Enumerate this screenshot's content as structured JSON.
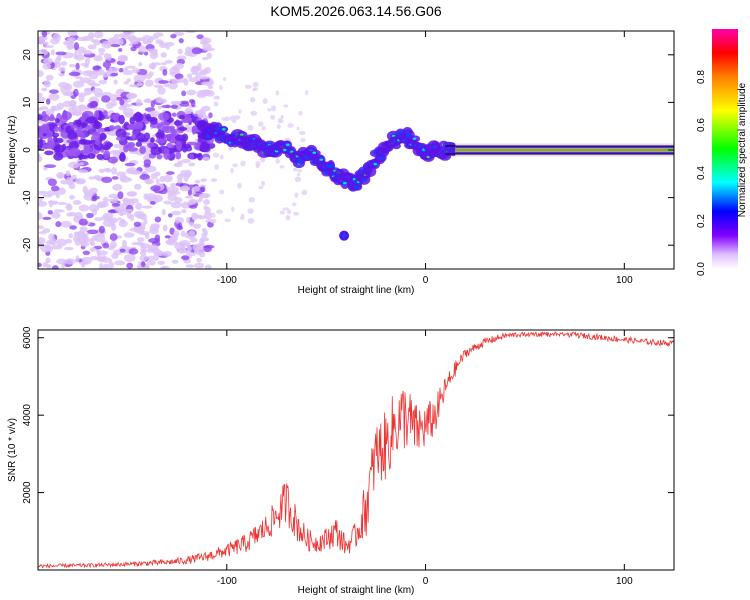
{
  "title": "KOM5.2026.063.14.56.G06",
  "colors": {
    "snr_line": "#ee3333",
    "axis": "#000000",
    "blob_light": "#d9b8f5",
    "blob_dark": "#6a1ee8",
    "trace_core": "#ff2a2a"
  },
  "chart_data": [
    {
      "type": "heatmap",
      "name": "spectrogram",
      "xlabel": "Height of straight line (km)",
      "ylabel": "Frequency (Hz)",
      "xlim": [
        -195,
        125
      ],
      "ylim": [
        -25,
        25
      ],
      "xticks": [
        -100,
        0,
        100
      ],
      "yticks": [
        -20,
        -10,
        0,
        10,
        20
      ],
      "colorbar": {
        "label": "Normalized spectral amplitude",
        "range": [
          0,
          1
        ],
        "ticks": [
          0.0,
          0.2,
          0.4,
          0.6,
          0.8
        ],
        "colormap": [
          "#ffffff",
          "#e0c0ff",
          "#8000ff",
          "#0000ff",
          "#00ffff",
          "#00ff00",
          "#ffff00",
          "#ff8000",
          "#ff0000",
          "#ff00aa"
        ]
      },
      "doppler_track": [
        [
          -110,
          4
        ],
        [
          -100,
          3
        ],
        [
          -90,
          2
        ],
        [
          -80,
          0
        ],
        [
          -70,
          1
        ],
        [
          -65,
          -2
        ],
        [
          -58,
          -1
        ],
        [
          -50,
          -4
        ],
        [
          -45,
          -5
        ],
        [
          -40,
          -6
        ],
        [
          -35,
          -7
        ],
        [
          -30,
          -5
        ],
        [
          -25,
          -2
        ],
        [
          -20,
          1
        ],
        [
          -15,
          2
        ],
        [
          -10,
          3
        ],
        [
          -5,
          1
        ],
        [
          0,
          -1
        ],
        [
          5,
          0
        ],
        [
          10,
          0
        ],
        [
          15,
          0
        ],
        [
          20,
          0
        ],
        [
          125,
          0
        ]
      ],
      "isolated_blob": {
        "x": -41,
        "y": -18
      },
      "steady_carrier": {
        "x_start": 15,
        "x_end": 125,
        "y": 0,
        "amplitude": 1.0
      }
    },
    {
      "type": "line",
      "name": "snr",
      "xlabel": "Height of straight line (km)",
      "ylabel": "SNR (10 * v/v)",
      "xlim": [
        -195,
        125
      ],
      "ylim": [
        0,
        6200
      ],
      "xticks": [
        -100,
        0,
        100
      ],
      "yticks": [
        2000,
        4000,
        6000
      ],
      "series": [
        {
          "name": "SNR",
          "x": [
            -195,
            -170,
            -150,
            -130,
            -120,
            -110,
            -100,
            -90,
            -80,
            -75,
            -70,
            -65,
            -60,
            -55,
            -50,
            -45,
            -40,
            -35,
            -30,
            -25,
            -20,
            -15,
            -10,
            -5,
            0,
            5,
            10,
            15,
            20,
            30,
            40,
            50,
            60,
            70,
            80,
            90,
            100,
            110,
            125
          ],
          "values": [
            100,
            120,
            150,
            200,
            250,
            350,
            500,
            700,
            1100,
            1400,
            1800,
            1200,
            800,
            700,
            800,
            1000,
            600,
            900,
            1600,
            3000,
            3200,
            3800,
            4000,
            3600,
            3700,
            4000,
            4700,
            5200,
            5600,
            5900,
            6050,
            6100,
            6100,
            6100,
            6050,
            6000,
            5950,
            5900,
            5850
          ],
          "noise": [
            100,
            100,
            120,
            150,
            200,
            250,
            350,
            500,
            700,
            900,
            1200,
            900,
            600,
            500,
            600,
            800,
            500,
            700,
            1500,
            1700,
            1800,
            1900,
            1800,
            1400,
            1200,
            1000,
            600,
            400,
            250,
            200,
            150,
            150,
            150,
            150,
            150,
            150,
            150,
            150,
            150
          ]
        }
      ]
    }
  ]
}
